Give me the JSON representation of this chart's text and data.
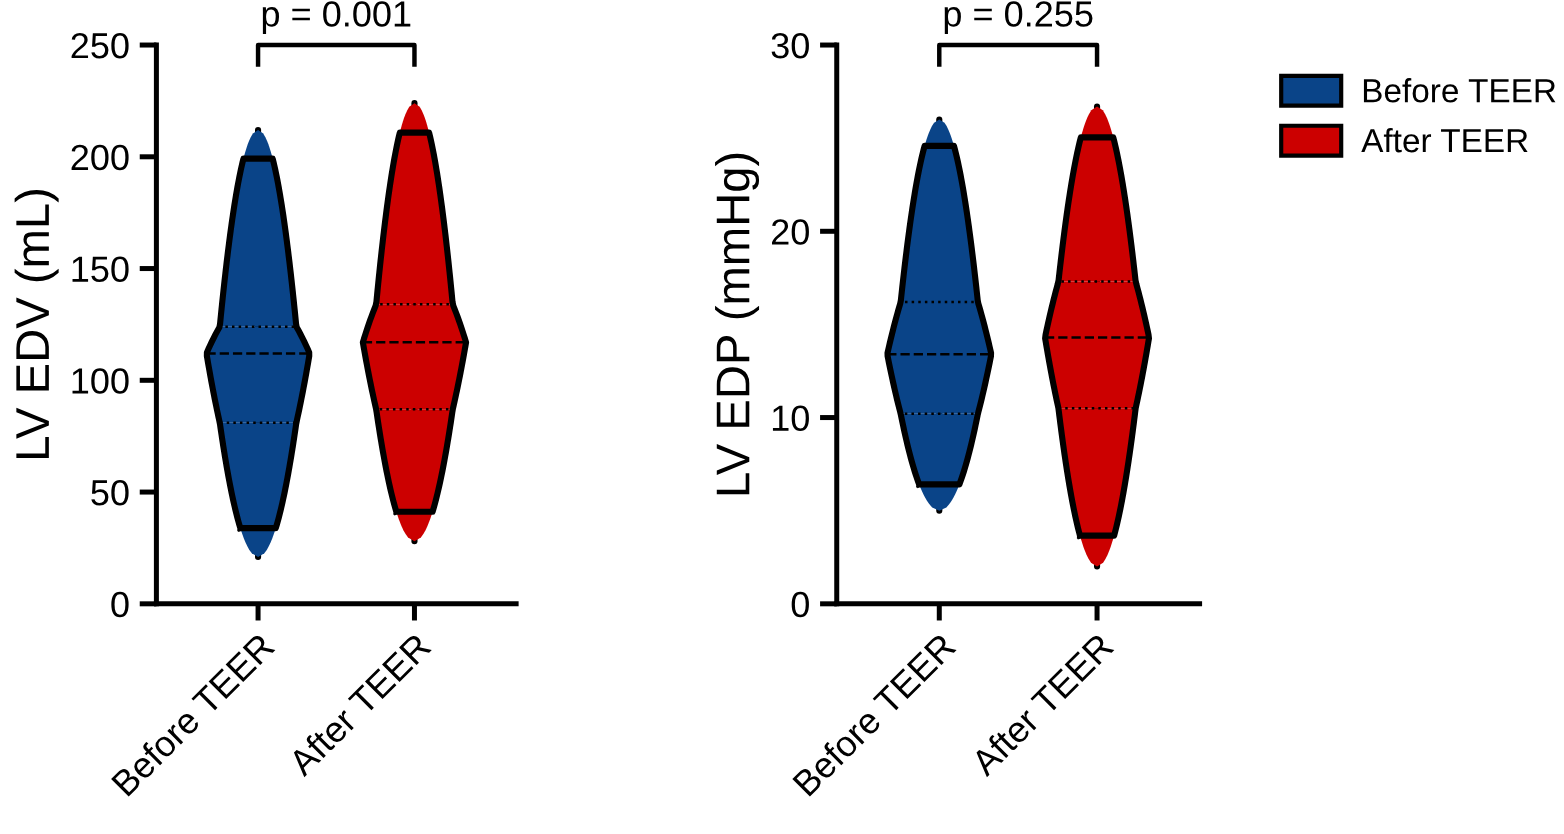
{
  "chart_data": [
    {
      "type": "box",
      "ylabel": "LV EDV (mL)",
      "categories": [
        "Before TEER",
        "After TEER"
      ],
      "ylim": [
        0,
        250
      ],
      "yticks": [
        0,
        50,
        100,
        150,
        200,
        250
      ],
      "grid": false,
      "legend": "top right",
      "annotations": [
        "p = 0.001"
      ],
      "series": [
        {
          "name": "Before TEER",
          "color": "#0a4488",
          "boxes": [
            {
              "low": 21,
              "q1": 81,
              "median": 112,
              "q3": 124,
              "high": 212
            },
            null
          ]
        },
        {
          "name": "After TEER",
          "color": "#cc0000",
          "boxes": [
            null,
            {
              "low": 28,
              "q1": 87,
              "median": 117,
              "q3": 134,
              "high": 224
            }
          ]
        }
      ]
    },
    {
      "type": "box",
      "ylabel": "LV EDP (mmHg)",
      "categories": [
        "Before TEER",
        "After TEER"
      ],
      "ylim": [
        0,
        30
      ],
      "yticks": [
        0,
        10,
        20,
        30
      ],
      "grid": false,
      "annotations": [
        "p = 0.255"
      ],
      "series": [
        {
          "color": "#0a4488",
          "boxes": [
            {
              "low": 5,
              "q1": 10.2,
              "median": 13.4,
              "q3": 16.2,
              "high": 26
            },
            null
          ]
        },
        {
          "color": "#cc0000",
          "boxes": [
            null,
            {
              "low": 2,
              "q1": 10.5,
              "median": 14.3,
              "q3": 17.3,
              "high": 26.7
            }
          ]
        }
      ]
    }
  ]
}
